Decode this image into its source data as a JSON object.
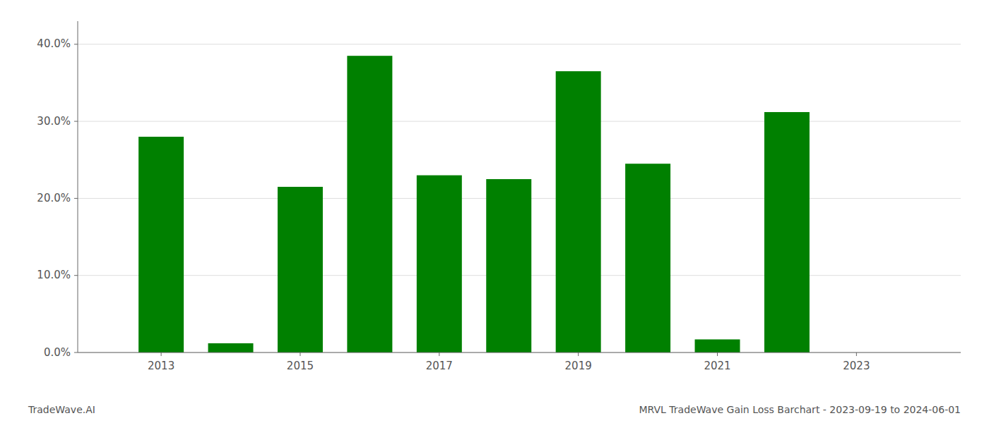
{
  "chart_data": {
    "type": "bar",
    "title": "MRVL TradeWave Gain Loss Barchart - 2023-09-19 to 2024-06-01",
    "annotations": [
      "TradeWave.AI"
    ],
    "x": [
      2013,
      2014,
      2015,
      2016,
      2017,
      2018,
      2019,
      2020,
      2021,
      2022
    ],
    "values": [
      0.28,
      0.012,
      0.215,
      0.385,
      0.23,
      0.225,
      0.365,
      0.245,
      0.017,
      0.312
    ],
    "color": "#008000",
    "xlim": [
      2011.8,
      2024.5
    ],
    "xticks": [
      2013,
      2015,
      2017,
      2019,
      2021,
      2023
    ],
    "ylim": [
      0,
      0.43
    ],
    "yticks": [
      {
        "value": 0.0,
        "label": "0.0%"
      },
      {
        "value": 0.1,
        "label": "10.0%"
      },
      {
        "value": 0.2,
        "label": "20.0%"
      },
      {
        "value": 0.3,
        "label": "30.0%"
      },
      {
        "value": 0.4,
        "label": "40.0%"
      }
    ],
    "grid": true
  }
}
